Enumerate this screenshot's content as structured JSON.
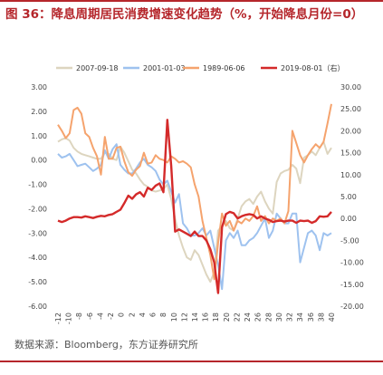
{
  "figure": {
    "title": "图 36：降息周期居民消费增速变化趋势（%，开始降息月份=0）",
    "source": "数据来源：Bloomberg，东方证券研究所"
  },
  "chart_data": {
    "type": "line",
    "x_range": [
      -12,
      40
    ],
    "x_ticks": [
      "-12",
      "-10",
      "-8",
      "-6",
      "-4",
      "-2",
      "0",
      "2",
      "4",
      "6",
      "8",
      "10",
      "12",
      "14",
      "16",
      "18",
      "20",
      "22",
      "24",
      "26",
      "28",
      "30",
      "32",
      "34",
      "36",
      "38",
      "40"
    ],
    "left_axis": {
      "ylim": [
        -6,
        3
      ],
      "ticks": [
        "3.00",
        "2.00",
        "1.00",
        "0.00",
        "-1.00",
        "-2.00",
        "-3.00",
        "-4.00",
        "-5.00",
        "-6.00"
      ]
    },
    "right_axis": {
      "ylim": [
        -20,
        30
      ],
      "ticks": [
        "30.00",
        "25.00",
        "20.00",
        "15.00",
        "10.00",
        "5.00",
        "0.00",
        "-5.00",
        "-10.00",
        "-15.00",
        "-20.00"
      ]
    },
    "colors": {
      "s2007": "#ddd5bf",
      "s2001": "#9ec2ef",
      "s1989": "#f5a36d",
      "s2019": "#d42a2a"
    },
    "series": [
      {
        "name": "2007-09-18",
        "axis": "left",
        "color": "#ddd5bf",
        "values": [
          0.75,
          0.85,
          0.9,
          0.8,
          0.5,
          0.35,
          0.25,
          0.2,
          0.15,
          0.1,
          0.05,
          0.05,
          0.3,
          0.25,
          0.05,
          0.0,
          0.55,
          0.3,
          -0.05,
          -0.4,
          -0.55,
          -0.8,
          -1.0,
          -1.1,
          -1.25,
          -1.3,
          -1.25,
          -1.2,
          -1.0,
          -1.6,
          -2.4,
          -3.1,
          -3.6,
          -4.0,
          -4.1,
          -3.7,
          -3.9,
          -4.3,
          -4.7,
          -5.0,
          -4.6,
          -2.9,
          -2.7,
          -2.5,
          -2.8,
          -2.9,
          -2.4,
          -1.9,
          -1.7,
          -1.6,
          -1.8,
          -1.5,
          -1.3,
          -1.7,
          -2.0,
          -2.2,
          -0.9,
          -0.55,
          -0.45,
          -0.4,
          -0.2,
          -0.35,
          -0.95,
          0.1,
          0.2,
          0.35,
          0.2,
          0.5,
          0.75,
          0.25,
          0.5
        ]
      },
      {
        "name": "2001-01-03",
        "axis": "left",
        "color": "#9ec2ef",
        "values": [
          0.25,
          0.1,
          0.15,
          0.25,
          0.0,
          -0.25,
          -0.2,
          -0.15,
          -0.3,
          -0.45,
          -0.35,
          -0.2,
          0.4,
          0.05,
          0.45,
          0.65,
          -0.2,
          -0.4,
          -0.55,
          -0.55,
          -0.35,
          -0.1,
          0.05,
          -0.2,
          -0.3,
          -0.45,
          -0.8,
          -1.0,
          -0.85,
          -1.3,
          -1.75,
          -1.4,
          -2.6,
          -2.8,
          -3.1,
          -3.1,
          -3.0,
          -2.8,
          -3.1,
          -2.9,
          -3.6,
          -4.3,
          -5.3,
          -3.3,
          -3.0,
          -3.2,
          -2.9,
          -3.5,
          -3.5,
          -3.3,
          -3.2,
          -3.0,
          -2.7,
          -2.4,
          -3.2,
          -2.9,
          -2.2,
          -2.4,
          -2.6,
          -2.6,
          -2.2,
          -2.2,
          -4.2,
          -3.6,
          -3.0,
          -2.9,
          -3.1,
          -3.7,
          -3.0,
          -3.1,
          -3.0
        ]
      },
      {
        "name": "1989-06-06",
        "axis": "left",
        "color": "#f5a36d",
        "values": [
          1.45,
          1.2,
          0.9,
          1.1,
          2.05,
          2.15,
          1.9,
          1.1,
          0.95,
          0.5,
          0.15,
          -0.6,
          0.95,
          0.05,
          0.05,
          0.5,
          0.55,
          -0.05,
          -0.5,
          -0.65,
          -0.4,
          -0.25,
          0.3,
          -0.15,
          -0.1,
          0.2,
          0.05,
          0.0,
          -0.1,
          0.15,
          0.05,
          -0.1,
          -0.05,
          -0.15,
          -0.3,
          -1.0,
          -1.5,
          -2.5,
          -3.2,
          -3.9,
          -4.9,
          -3.4,
          -2.2,
          -2.7,
          -2.5,
          -2.9,
          -2.5,
          -2.6,
          -2.4,
          -2.5,
          -2.3,
          -1.9,
          -2.5,
          -2.3,
          -2.6,
          -2.4,
          -2.5,
          -2.4,
          -2.6,
          -2.1,
          1.2,
          0.7,
          0.2,
          -0.1,
          0.2,
          0.45,
          0.65,
          0.5,
          0.75,
          1.5,
          2.3
        ]
      },
      {
        "name": "2019-08-01（右）",
        "axis": "right",
        "color": "#d42a2a",
        "values": [
          -0.5,
          -0.8,
          -0.5,
          0.0,
          0.3,
          0.3,
          0.2,
          0.5,
          0.3,
          0.1,
          0.4,
          0.6,
          0.5,
          0.8,
          1.0,
          1.5,
          2.0,
          3.5,
          5.2,
          4.5,
          5.5,
          6.0,
          5.0,
          7.0,
          6.5,
          7.5,
          8.0,
          6.0,
          22.5,
          12.0,
          -3.0,
          -2.5,
          -3.0,
          -3.5,
          -4.0,
          -3.0,
          -4.0,
          -4.0,
          -5.0,
          -7.0,
          -10.0,
          -17.0,
          -2.0,
          1.0,
          1.5,
          1.2,
          0.0,
          0.5,
          0.8,
          1.0,
          0.8,
          0.0,
          0.5,
          0.0,
          -0.3,
          -0.8,
          -0.6,
          -0.5,
          -0.7,
          -0.5,
          -0.5,
          -1.0,
          -0.5,
          -0.6,
          -0.5,
          -1.0,
          -0.6,
          0.5,
          0.4,
          0.5,
          1.5
        ]
      }
    ]
  }
}
